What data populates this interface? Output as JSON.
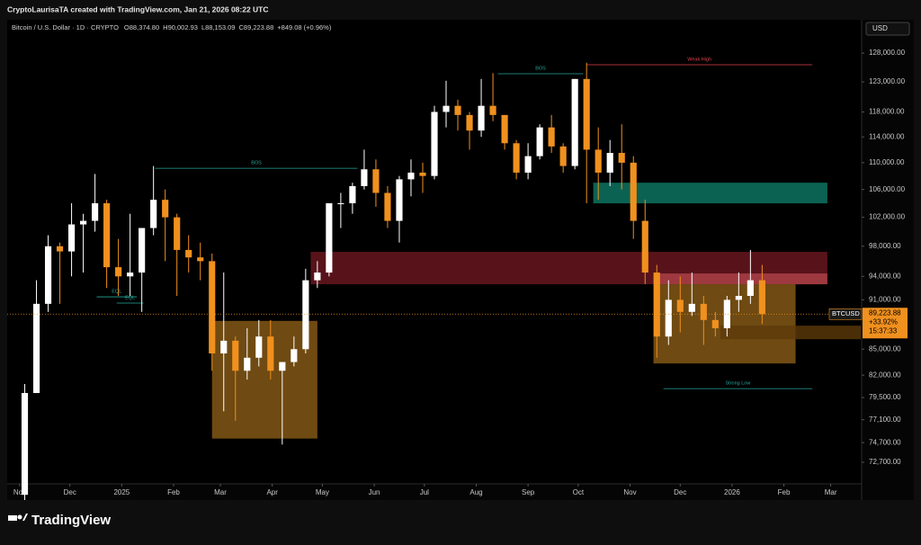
{
  "header": {
    "author_line": "CryptoLaurisaTA created with TradingView.com, Jan 21, 2026 08:22 UTC",
    "currency": "USD",
    "brand": "TradingView"
  },
  "chart_data": {
    "type": "candlestick",
    "symbol": "Bitcoin / U.S. Dollar · 1D · CRYPTO",
    "ohlc": [
      {
        "key": "O",
        "value": "88,374.80"
      },
      {
        "key": "H",
        "value": "90,002.93"
      },
      {
        "key": "L",
        "value": "88,153.09"
      },
      {
        "key": "C",
        "value": "89,223.88"
      }
    ],
    "change": "+849.08 (+0.96%)",
    "x": [
      3,
      10,
      17,
      24,
      31,
      38,
      45,
      52,
      59,
      66,
      73,
      80,
      87,
      94,
      101,
      108,
      115,
      122,
      129,
      136,
      143,
      150,
      157,
      164,
      171,
      178,
      185,
      192,
      199,
      206,
      213,
      220,
      227,
      234,
      241,
      248,
      255,
      262,
      269,
      276,
      283,
      290,
      297,
      304,
      311,
      318,
      325,
      332,
      339,
      346,
      353,
      360,
      367,
      374,
      381,
      388,
      395,
      402,
      409,
      416,
      423,
      430,
      437,
      444
    ],
    "open": [
      69500,
      80000,
      90500,
      98000,
      97300,
      101000,
      101500,
      104000,
      95200,
      94000,
      94500,
      100500,
      104500,
      102000,
      97500,
      96500,
      96000,
      84500,
      86000,
      82500,
      84000,
      86500,
      82500,
      83500,
      85000,
      93500,
      94500,
      104000,
      104000,
      106500,
      109000,
      105500,
      101500,
      107500,
      108500,
      108000,
      118000,
      119000,
      117500,
      115000,
      119000,
      117500,
      113000,
      108500,
      111000,
      115500,
      112500,
      109500,
      123500,
      112000,
      108500,
      111500,
      110000,
      101500,
      94500,
      86500,
      91000,
      89500,
      90500,
      88500,
      87500,
      91000,
      91500,
      93500
    ],
    "high": [
      81000,
      93500,
      99500,
      98500,
      104000,
      102500,
      108300,
      104500,
      99000,
      102500,
      100500,
      109500,
      106000,
      102500,
      99500,
      98500,
      97000,
      94500,
      86500,
      87500,
      88500,
      88500,
      83500,
      86500,
      95000,
      96000,
      104000,
      105500,
      107000,
      112000,
      110500,
      106500,
      108000,
      110500,
      110000,
      119000,
      123200,
      120000,
      118000,
      123500,
      124500,
      117500,
      113500,
      113000,
      116000,
      117500,
      113000,
      123500,
      126300,
      115500,
      113500,
      116000,
      111000,
      104500,
      95500,
      93500,
      94000,
      94500,
      91500,
      89500,
      91500,
      94500,
      97500,
      95500
    ],
    "low": [
      69000,
      80000,
      89500,
      90500,
      94000,
      94500,
      100000,
      92500,
      91500,
      91500,
      89500,
      99500,
      96000,
      91500,
      94500,
      93500,
      82500,
      78000,
      77000,
      81500,
      83000,
      81500,
      74500,
      83000,
      84500,
      92500,
      94000,
      100500,
      102500,
      106000,
      103500,
      100500,
      98500,
      105000,
      105500,
      107500,
      115500,
      115000,
      112000,
      114000,
      116500,
      112000,
      107500,
      107500,
      110500,
      111500,
      108500,
      109000,
      104000,
      104500,
      106500,
      106000,
      99000,
      93000,
      84000,
      85500,
      87000,
      89000,
      85500,
      86500,
      86500,
      89500,
      90500,
      88000
    ],
    "close": [
      80000,
      90500,
      98000,
      97300,
      101000,
      101500,
      104000,
      95200,
      94000,
      94500,
      100500,
      104500,
      102000,
      97500,
      96500,
      96000,
      84500,
      86000,
      82500,
      84000,
      86500,
      82500,
      83500,
      85000,
      93500,
      94500,
      104000,
      104000,
      106500,
      109000,
      105500,
      101500,
      107500,
      108500,
      108000,
      118000,
      119000,
      117500,
      115000,
      119000,
      117500,
      113000,
      108500,
      111000,
      115500,
      112500,
      109500,
      123500,
      112000,
      108500,
      111500,
      110000,
      101500,
      94500,
      86500,
      91000,
      89500,
      90500,
      88500,
      87500,
      91000,
      91500,
      93500,
      89223.88
    ],
    "up_color": "#ffffff",
    "down_color": "#f0901e",
    "xlim": [
      -7.5,
      503.5
    ],
    "xticks": [
      {
        "value": 0,
        "label": "Nov"
      },
      {
        "value": 30,
        "label": "Dec"
      },
      {
        "value": 61,
        "label": "2025"
      },
      {
        "value": 92,
        "label": "Feb"
      },
      {
        "value": 120,
        "label": "Mar"
      },
      {
        "value": 151,
        "label": "Apr"
      },
      {
        "value": 181,
        "label": "May"
      },
      {
        "value": 212,
        "label": "Jun"
      },
      {
        "value": 242,
        "label": "Jul"
      },
      {
        "value": 273,
        "label": "Aug"
      },
      {
        "value": 304,
        "label": "Sep"
      },
      {
        "value": 334,
        "label": "Oct"
      },
      {
        "value": 365,
        "label": "Nov"
      },
      {
        "value": 395,
        "label": "Dec"
      },
      {
        "value": 426,
        "label": "2026"
      },
      {
        "value": 457,
        "label": "Feb"
      },
      {
        "value": 485,
        "label": "Mar"
      }
    ],
    "ylim": [
      70560,
      134030
    ],
    "log_scale": true,
    "grid": false,
    "yticks": [
      {
        "value": 128000,
        "label": "128,000.00"
      },
      {
        "value": 123000,
        "label": "123,000.00"
      },
      {
        "value": 118000,
        "label": "118,000.00"
      },
      {
        "value": 114000,
        "label": "114,000.00"
      },
      {
        "value": 110000,
        "label": "110,000.00"
      },
      {
        "value": 106000,
        "label": "106,000.00"
      },
      {
        "value": 102000,
        "label": "102,000.00"
      },
      {
        "value": 98000,
        "label": "98,000.00"
      },
      {
        "value": 94000,
        "label": "94,000.00"
      },
      {
        "value": 91000,
        "label": "91,000.00"
      },
      {
        "value": 85000,
        "label": "85,000.00"
      },
      {
        "value": 82000,
        "label": "82,000.00"
      },
      {
        "value": 79500,
        "label": "79,500.00"
      },
      {
        "value": 77100,
        "label": "77,100.00"
      },
      {
        "value": 74700,
        "label": "74,700.00"
      },
      {
        "value": 72700,
        "label": "72,700.00"
      }
    ],
    "last_price": {
      "value": 89223.88,
      "label": "89,223.88"
    },
    "ticker": "BTCUSD",
    "change_percent": "+33.92%",
    "countdown": "15:37:33",
    "zones": [
      {
        "x": [
          115,
          178
        ],
        "y": [
          75120,
          88390
        ],
        "color": "#8b5d17"
      },
      {
        "x": [
          174,
          483
        ],
        "y": [
          92980,
          97240
        ],
        "color": "#6e1820"
      },
      {
        "x": [
          379,
          483
        ],
        "y": [
          92980,
          94380
        ],
        "color": "#b0444a"
      },
      {
        "x": [
          343,
          483
        ],
        "y": [
          103990,
          107000
        ],
        "color": "#0f7a66"
      },
      {
        "x": [
          379,
          464
        ],
        "y": [
          83340,
          92980
        ],
        "color": "#8b5d17"
      },
      {
        "x": [
          419,
          503
        ],
        "y": [
          86180,
          87810
        ],
        "color": "#5c3a0a"
      }
    ],
    "levels": [
      {
        "label": "BOS",
        "x": [
          81,
          202
        ],
        "y": 109150,
        "color": "#26a69a"
      },
      {
        "label": "BOS",
        "x": [
          286,
          337
        ],
        "y": 124390,
        "color": "#26a69a"
      },
      {
        "label": "Weak High",
        "x": [
          339,
          474
        ],
        "y": 125950,
        "color": "#e0404a"
      },
      {
        "label": "Strong Low",
        "x": [
          385,
          474
        ],
        "y": 80490,
        "color": "#26a69a"
      },
      {
        "label": "EQL",
        "x": [
          46,
          70
        ],
        "y": 91380,
        "color": "#26a69a"
      },
      {
        "label": "EQL",
        "x": [
          58,
          74
        ],
        "y": 90590,
        "color": "#26a69a"
      }
    ]
  }
}
